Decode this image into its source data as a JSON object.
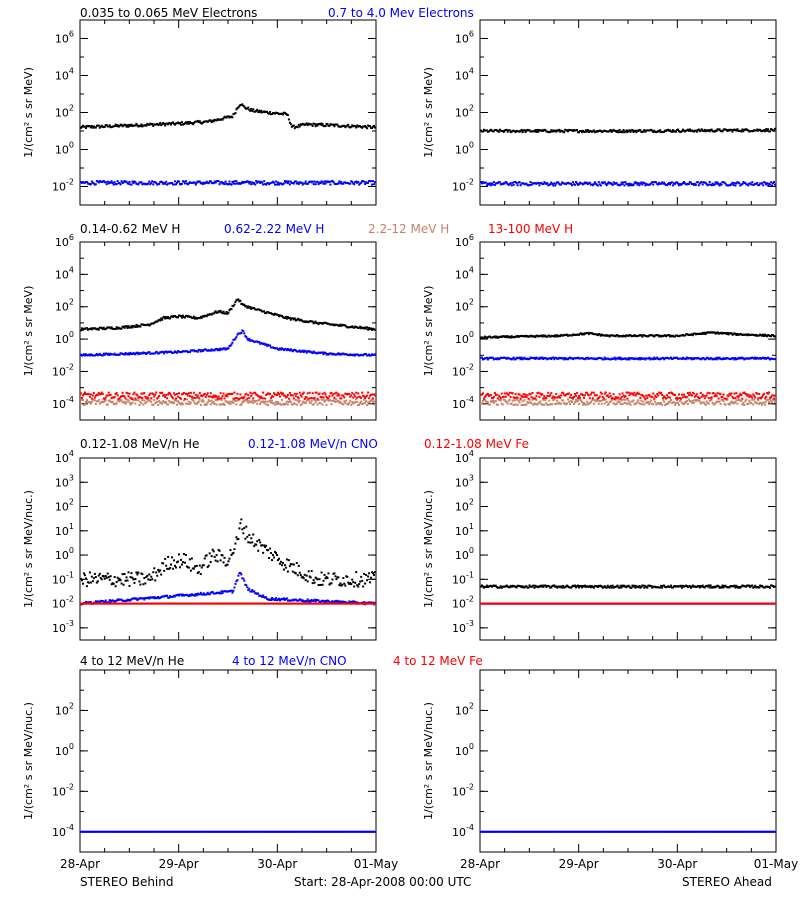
{
  "footer": {
    "left": "STEREO Behind",
    "center": "Start: 28-Apr-2008 00:00 UTC",
    "right": "STEREO Ahead"
  },
  "x_tick_labels": [
    "28-Apr",
    "29-Apr",
    "30-Apr",
    "01-May"
  ],
  "chart_data": [
    {
      "type": "scatter",
      "id": "electrons",
      "title_parts": [
        {
          "text": "0.035 to 0.065 MeV Electrons",
          "color": "#000000"
        },
        {
          "text": "0.7 to 4.0 Mev Electrons",
          "color": "#0000ff"
        }
      ],
      "ylabel": "1/(cm² s sr MeV)",
      "yscale": "log",
      "ylim_exp": [
        -3,
        7
      ],
      "ytick_exps": [
        -2,
        0,
        2,
        4,
        6
      ],
      "xlim_days": [
        0,
        3
      ],
      "behind": {
        "series": [
          {
            "color": "#000000",
            "baseline": 1.2,
            "noise": 0.08,
            "points": [
              [
                0.0,
                1.2
              ],
              [
                0.5,
                1.3
              ],
              [
                1.0,
                1.4
              ],
              [
                1.3,
                1.5
              ],
              [
                1.55,
                1.8
              ],
              [
                1.6,
                2.3
              ],
              [
                1.63,
                2.5
              ],
              [
                1.66,
                2.3
              ],
              [
                1.75,
                2.1
              ],
              [
                1.9,
                2.0
              ],
              [
                2.1,
                1.9
              ],
              [
                2.15,
                1.2
              ],
              [
                2.3,
                1.35
              ],
              [
                2.6,
                1.3
              ],
              [
                3.0,
                1.2
              ]
            ]
          },
          {
            "color": "#0000ff",
            "baseline": -1.8,
            "noise": 0.1,
            "points": [
              [
                0.0,
                -1.8
              ],
              [
                3.0,
                -1.8
              ]
            ]
          }
        ]
      },
      "ahead": {
        "series": [
          {
            "color": "#000000",
            "baseline": 1.0,
            "noise": 0.07,
            "points": [
              [
                0.0,
                1.0
              ],
              [
                1.5,
                1.0
              ],
              [
                3.0,
                1.05
              ]
            ]
          },
          {
            "color": "#0000ff",
            "baseline": -1.85,
            "noise": 0.1,
            "points": [
              [
                0.0,
                -1.85
              ],
              [
                3.0,
                -1.85
              ]
            ]
          }
        ]
      }
    },
    {
      "type": "scatter",
      "id": "protons",
      "title_parts": [
        {
          "text": "0.14-0.62 MeV H",
          "color": "#000000"
        },
        {
          "text": "0.62-2.22 MeV H",
          "color": "#0000ff"
        },
        {
          "text": "2.2-12 MeV H",
          "color": "#c8806a"
        },
        {
          "text": "13-100 MeV H",
          "color": "#ff0000"
        }
      ],
      "ylabel": "1/(cm² s sr MeV)",
      "yscale": "log",
      "ylim_exp": [
        -5,
        6
      ],
      "ytick_exps": [
        -4,
        -2,
        0,
        2,
        4,
        6
      ],
      "xlim_days": [
        0,
        3
      ],
      "behind": {
        "series": [
          {
            "color": "#000000",
            "baseline": 0.6,
            "noise": 0.07,
            "points": [
              [
                0.0,
                0.6
              ],
              [
                0.4,
                0.7
              ],
              [
                0.7,
                0.9
              ],
              [
                0.85,
                1.3
              ],
              [
                1.0,
                1.4
              ],
              [
                1.2,
                1.3
              ],
              [
                1.4,
                1.7
              ],
              [
                1.5,
                1.6
              ],
              [
                1.6,
                2.5
              ],
              [
                1.65,
                2.1
              ],
              [
                1.8,
                1.8
              ],
              [
                2.1,
                1.3
              ],
              [
                2.4,
                1.0
              ],
              [
                2.7,
                0.8
              ],
              [
                3.0,
                0.6
              ]
            ]
          },
          {
            "color": "#0000ff",
            "baseline": -1.0,
            "noise": 0.06,
            "points": [
              [
                0.0,
                -1.0
              ],
              [
                1.0,
                -0.8
              ],
              [
                1.5,
                -0.6
              ],
              [
                1.6,
                0.3
              ],
              [
                1.65,
                0.5
              ],
              [
                1.7,
                0.0
              ],
              [
                2.0,
                -0.6
              ],
              [
                2.5,
                -0.9
              ],
              [
                3.0,
                -1.0
              ]
            ]
          },
          {
            "color": "#c8806a",
            "baseline": -3.9,
            "noise": 0.18,
            "points": [
              [
                0.0,
                -3.9
              ],
              [
                3.0,
                -3.9
              ]
            ]
          },
          {
            "color": "#ff0000",
            "baseline": -3.5,
            "noise": 0.2,
            "points": [
              [
                0.0,
                -3.5
              ],
              [
                3.0,
                -3.5
              ]
            ]
          }
        ]
      },
      "ahead": {
        "series": [
          {
            "color": "#000000",
            "baseline": 0.1,
            "noise": 0.05,
            "points": [
              [
                0.0,
                0.1
              ],
              [
                0.8,
                0.2
              ],
              [
                1.1,
                0.35
              ],
              [
                1.3,
                0.2
              ],
              [
                2.0,
                0.2
              ],
              [
                2.35,
                0.4
              ],
              [
                2.6,
                0.3
              ],
              [
                3.0,
                0.2
              ]
            ]
          },
          {
            "color": "#0000ff",
            "baseline": -1.2,
            "noise": 0.06,
            "points": [
              [
                0.0,
                -1.2
              ],
              [
                3.0,
                -1.2
              ]
            ]
          },
          {
            "color": "#c8806a",
            "baseline": -3.9,
            "noise": 0.18,
            "points": [
              [
                0.0,
                -3.9
              ],
              [
                3.0,
                -3.9
              ]
            ]
          },
          {
            "color": "#ff0000",
            "baseline": -3.5,
            "noise": 0.2,
            "points": [
              [
                0.0,
                -3.5
              ],
              [
                3.0,
                -3.5
              ]
            ]
          }
        ]
      }
    },
    {
      "type": "scatter",
      "id": "heavy-low",
      "title_parts": [
        {
          "text": "0.12-1.08 MeV/n He",
          "color": "#000000"
        },
        {
          "text": "0.12-1.08 MeV/n CNO",
          "color": "#0000ff"
        },
        {
          "text": "0.12-1.08 MeV Fe",
          "color": "#ff0000"
        }
      ],
      "ylabel": "1/(cm² s sr MeV/nuc.)",
      "yscale": "log",
      "ylim_exp": [
        -3.5,
        4
      ],
      "ytick_exps": [
        -3,
        -2,
        -1,
        0,
        1,
        2,
        3,
        4
      ],
      "xlim_days": [
        0,
        3
      ],
      "behind": {
        "series": [
          {
            "color": "#000000",
            "baseline": -1.0,
            "noise": 0.3,
            "points": [
              [
                0.0,
                -1.0
              ],
              [
                0.7,
                -1.0
              ],
              [
                0.9,
                -0.3
              ],
              [
                1.05,
                -0.2
              ],
              [
                1.2,
                -0.6
              ],
              [
                1.35,
                0.0
              ],
              [
                1.5,
                -0.2
              ],
              [
                1.6,
                0.6
              ],
              [
                1.63,
                1.3
              ],
              [
                1.7,
                0.8
              ],
              [
                1.85,
                0.3
              ],
              [
                2.1,
                -0.4
              ],
              [
                2.4,
                -1.0
              ],
              [
                3.0,
                -1.0
              ]
            ]
          },
          {
            "color": "#0000ff",
            "baseline": -2.0,
            "noise": 0.05,
            "points": [
              [
                0.0,
                -2.0
              ],
              [
                1.55,
                -1.5
              ],
              [
                1.62,
                -0.7
              ],
              [
                1.7,
                -1.4
              ],
              [
                1.9,
                -1.8
              ],
              [
                3.0,
                -2.0
              ]
            ]
          },
          {
            "color": "#ff0000",
            "baseline": -2.0,
            "noise": 0.0,
            "points": [
              [
                0.0,
                -2.0
              ],
              [
                3.0,
                -2.0
              ]
            ]
          }
        ]
      },
      "ahead": {
        "series": [
          {
            "color": "#000000",
            "baseline": -1.3,
            "noise": 0.05,
            "points": [
              [
                0.0,
                -1.3
              ],
              [
                3.0,
                -1.3
              ]
            ]
          },
          {
            "color": "#0000ff",
            "baseline": -2.0,
            "noise": 0.0,
            "points": [
              [
                0.0,
                -2.0
              ],
              [
                3.0,
                -2.0
              ]
            ]
          },
          {
            "color": "#ff0000",
            "baseline": -2.0,
            "noise": 0.0,
            "points": [
              [
                0.0,
                -2.0
              ],
              [
                3.0,
                -2.0
              ]
            ]
          }
        ]
      }
    },
    {
      "type": "scatter",
      "id": "heavy-high",
      "title_parts": [
        {
          "text": "4 to 12 MeV/n He",
          "color": "#000000"
        },
        {
          "text": "4 to 12 MeV/n CNO",
          "color": "#0000ff"
        },
        {
          "text": "4 to 12 MeV Fe",
          "color": "#ff0000"
        }
      ],
      "ylabel": "1/(cm² s sr MeV/nuc.)",
      "yscale": "log",
      "ylim_exp": [
        -5,
        4
      ],
      "ytick_exps": [
        -4,
        -2,
        0,
        2
      ],
      "xlim_days": [
        0,
        3
      ],
      "behind": {
        "series": [
          {
            "color": "#0000ff",
            "baseline": -4.0,
            "noise": 0.0,
            "points": [
              [
                0.0,
                -4.0
              ],
              [
                3.0,
                -4.0
              ]
            ]
          }
        ]
      },
      "ahead": {
        "series": [
          {
            "color": "#0000ff",
            "baseline": -4.0,
            "noise": 0.0,
            "points": [
              [
                0.0,
                -4.0
              ],
              [
                3.0,
                -4.0
              ]
            ]
          }
        ]
      }
    }
  ]
}
